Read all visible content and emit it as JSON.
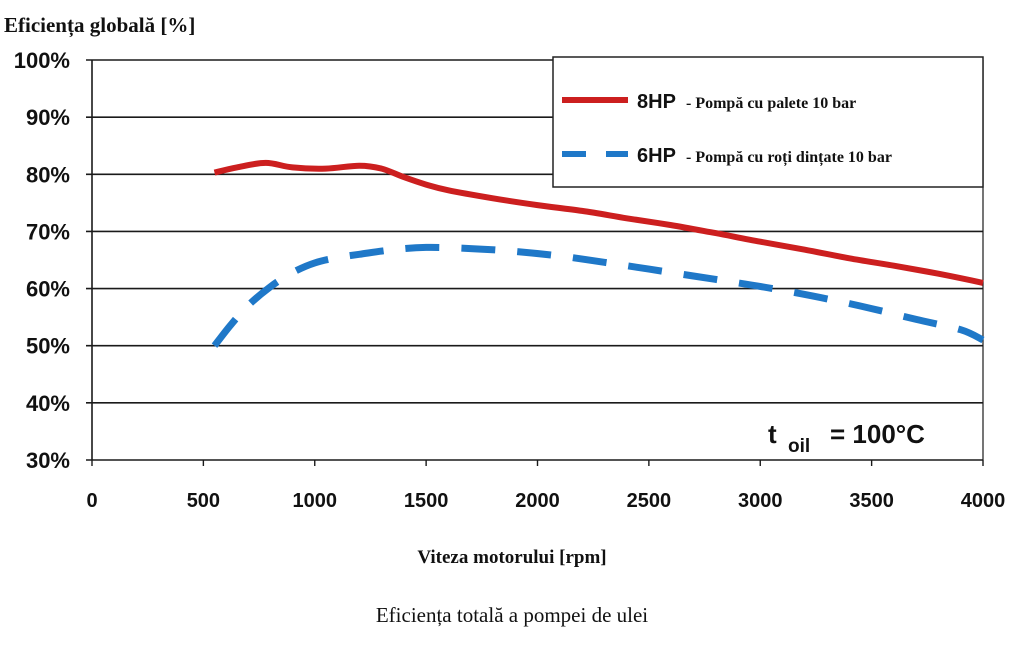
{
  "chart_data": {
    "type": "line",
    "title": "Eficiența totală a pompei de ulei",
    "ylabel": "Eficiența globală [%]",
    "xlabel": "Viteza motorului [rpm]",
    "xlim": [
      0,
      4000
    ],
    "ylim": [
      30,
      100
    ],
    "x_ticks": [
      0,
      500,
      1000,
      1500,
      2000,
      2500,
      3000,
      3500,
      4000
    ],
    "x_tick_labels": [
      "0",
      "500",
      "1000",
      "1500",
      "2000",
      "2500",
      "3000",
      "3500",
      "4000"
    ],
    "y_ticks": [
      30,
      40,
      50,
      60,
      70,
      80,
      90,
      100
    ],
    "y_tick_labels": [
      "30%",
      "40%",
      "50%",
      "60%",
      "70%",
      "80%",
      "90%",
      "100%"
    ],
    "grid": "horizontal",
    "legend_position": "top-right",
    "annotation": {
      "main": "t",
      "subscript": "oil",
      "rest": "= 100°C"
    },
    "series": [
      {
        "name": "8HP",
        "description": "- Pompă cu palete 10 bar",
        "color": "#cc1f1f",
        "style": "solid",
        "x": [
          550,
          650,
          780,
          900,
          1050,
          1200,
          1300,
          1400,
          1500,
          1600,
          1800,
          2000,
          2200,
          2400,
          2600,
          2800,
          3000,
          3200,
          3400,
          3600,
          3800,
          4000
        ],
        "values": [
          80.3,
          81.2,
          82.0,
          81.2,
          81.0,
          81.5,
          81.0,
          79.5,
          78.2,
          77.2,
          75.8,
          74.6,
          73.6,
          72.3,
          71.1,
          69.7,
          68.2,
          66.8,
          65.3,
          64.0,
          62.6,
          61.0
        ]
      },
      {
        "name": "6HP",
        "description": "- Pompă cu roți dințate 10 bar",
        "color": "#1f78c8",
        "style": "dashed",
        "x": [
          550,
          620,
          700,
          800,
          900,
          1000,
          1100,
          1200,
          1350,
          1500,
          1700,
          1900,
          2100,
          2300,
          2500,
          2700,
          2900,
          3100,
          3300,
          3500,
          3700,
          3900,
          4000
        ],
        "values": [
          50.0,
          53.5,
          57.0,
          60.3,
          62.8,
          64.5,
          65.4,
          66.0,
          66.8,
          67.2,
          67.0,
          66.5,
          65.7,
          64.6,
          63.4,
          62.2,
          61.0,
          59.7,
          58.2,
          56.5,
          54.6,
          52.8,
          51.0
        ]
      }
    ]
  }
}
